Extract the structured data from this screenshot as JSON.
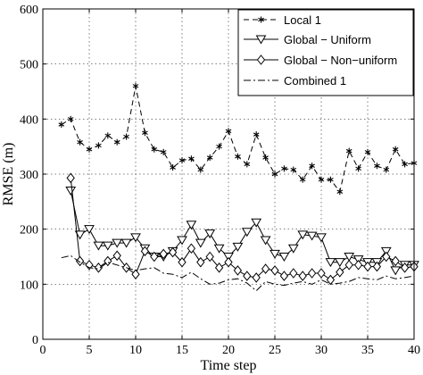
{
  "chart_data": {
    "type": "line",
    "title": "",
    "xlabel": "Time step",
    "ylabel": "RMSE (m)",
    "xlim": [
      0,
      40
    ],
    "ylim": [
      0,
      600
    ],
    "xticks": [
      0,
      5,
      10,
      15,
      20,
      25,
      30,
      35,
      40
    ],
    "yticks": [
      0,
      100,
      200,
      300,
      400,
      500,
      600
    ],
    "grid": true,
    "legend_position": "top-right",
    "series": [
      {
        "name": "Local 1",
        "line": "dashed",
        "marker": "asterisk",
        "color": "#000000",
        "x": [
          2,
          3,
          4,
          5,
          6,
          7,
          8,
          9,
          10,
          11,
          12,
          13,
          14,
          15,
          16,
          17,
          18,
          19,
          20,
          21,
          22,
          23,
          24,
          25,
          26,
          27,
          28,
          29,
          30,
          31,
          32,
          33,
          34,
          35,
          36,
          37,
          38,
          39,
          40
        ],
        "y": [
          390,
          400,
          358,
          345,
          352,
          370,
          358,
          368,
          460,
          375,
          345,
          340,
          312,
          325,
          328,
          308,
          330,
          350,
          378,
          332,
          318,
          372,
          330,
          300,
          310,
          308,
          290,
          315,
          290,
          290,
          268,
          342,
          310,
          340,
          315,
          308,
          345,
          318,
          320
        ]
      },
      {
        "name": "Global − Uniform",
        "line": "solid",
        "marker": "triangle-down",
        "color": "#000000",
        "x": [
          3,
          4,
          5,
          6,
          7,
          8,
          9,
          10,
          11,
          12,
          13,
          14,
          15,
          16,
          17,
          18,
          19,
          20,
          21,
          22,
          23,
          24,
          25,
          26,
          27,
          28,
          29,
          30,
          31,
          32,
          33,
          34,
          35,
          36,
          37,
          38,
          39,
          40
        ],
        "y": [
          270,
          190,
          200,
          170,
          170,
          175,
          175,
          185,
          165,
          150,
          150,
          160,
          180,
          208,
          175,
          192,
          165,
          150,
          168,
          195,
          212,
          180,
          155,
          150,
          165,
          190,
          188,
          185,
          140,
          140,
          150,
          145,
          140,
          140,
          160,
          125,
          135,
          135
        ]
      },
      {
        "name": "Global − Non−uniform",
        "line": "solid",
        "marker": "diamond",
        "color": "#000000",
        "x": [
          3,
          4,
          5,
          6,
          7,
          8,
          9,
          10,
          11,
          12,
          13,
          14,
          15,
          16,
          17,
          18,
          19,
          20,
          21,
          22,
          23,
          24,
          25,
          26,
          27,
          28,
          29,
          30,
          31,
          32,
          33,
          34,
          35,
          36,
          37,
          38,
          39,
          40
        ],
        "y": [
          293,
          142,
          135,
          130,
          142,
          152,
          130,
          118,
          160,
          150,
          155,
          158,
          140,
          165,
          140,
          150,
          130,
          140,
          125,
          115,
          112,
          128,
          125,
          115,
          120,
          115,
          120,
          120,
          108,
          122,
          135,
          135,
          132,
          132,
          150,
          142,
          130,
          132
        ]
      },
      {
        "name": "Combined 1",
        "line": "dashdot",
        "marker": "none",
        "color": "#000000",
        "x": [
          2,
          3,
          4,
          5,
          6,
          7,
          8,
          9,
          10,
          11,
          12,
          13,
          14,
          15,
          16,
          17,
          18,
          19,
          20,
          21,
          22,
          23,
          24,
          25,
          26,
          27,
          28,
          29,
          30,
          31,
          32,
          33,
          34,
          35,
          36,
          37,
          38,
          39,
          40
        ],
        "y": [
          148,
          152,
          140,
          130,
          128,
          140,
          135,
          130,
          125,
          128,
          130,
          120,
          118,
          112,
          122,
          110,
          100,
          102,
          108,
          110,
          102,
          88,
          105,
          100,
          98,
          102,
          105,
          100,
          108,
          100,
          102,
          105,
          112,
          110,
          108,
          115,
          110,
          112,
          115
        ]
      }
    ]
  }
}
